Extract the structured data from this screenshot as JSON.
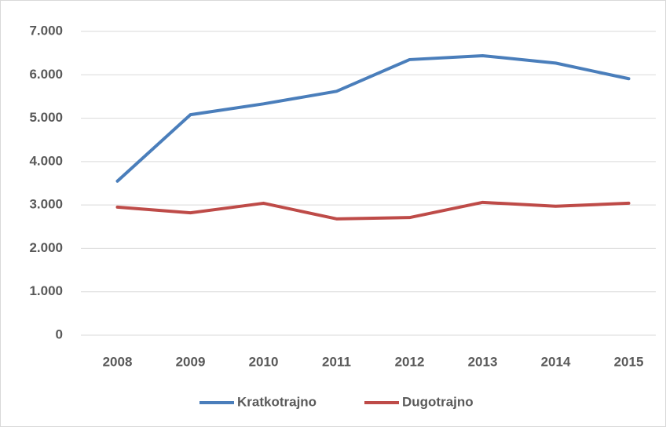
{
  "chart_data": {
    "type": "line",
    "categories": [
      "2008",
      "2009",
      "2010",
      "2011",
      "2012",
      "2013",
      "2014",
      "2015"
    ],
    "series": [
      {
        "name": "Kratkotrajno",
        "color": "#4a7ebb",
        "values": [
          3550,
          5080,
          5330,
          5620,
          6350,
          6440,
          6270,
          5910
        ]
      },
      {
        "name": "Dugotrajno",
        "color": "#be4b48",
        "values": [
          2950,
          2820,
          3040,
          2680,
          2710,
          3060,
          2970,
          3040
        ]
      }
    ],
    "ylim": [
      0,
      7000
    ],
    "yticks": [
      0,
      {
        "value": 1000,
        "label": "1.000"
      },
      {
        "value": 2000,
        "label": "2.000"
      },
      {
        "value": 3000,
        "label": "3.000"
      },
      {
        "value": 4000,
        "label": "4.000"
      },
      {
        "value": 5000,
        "label": "5.000"
      },
      {
        "value": 6000,
        "label": "6.000"
      },
      {
        "value": 7000,
        "label": "7.000"
      }
    ],
    "grid": true,
    "legend": "bottom"
  }
}
